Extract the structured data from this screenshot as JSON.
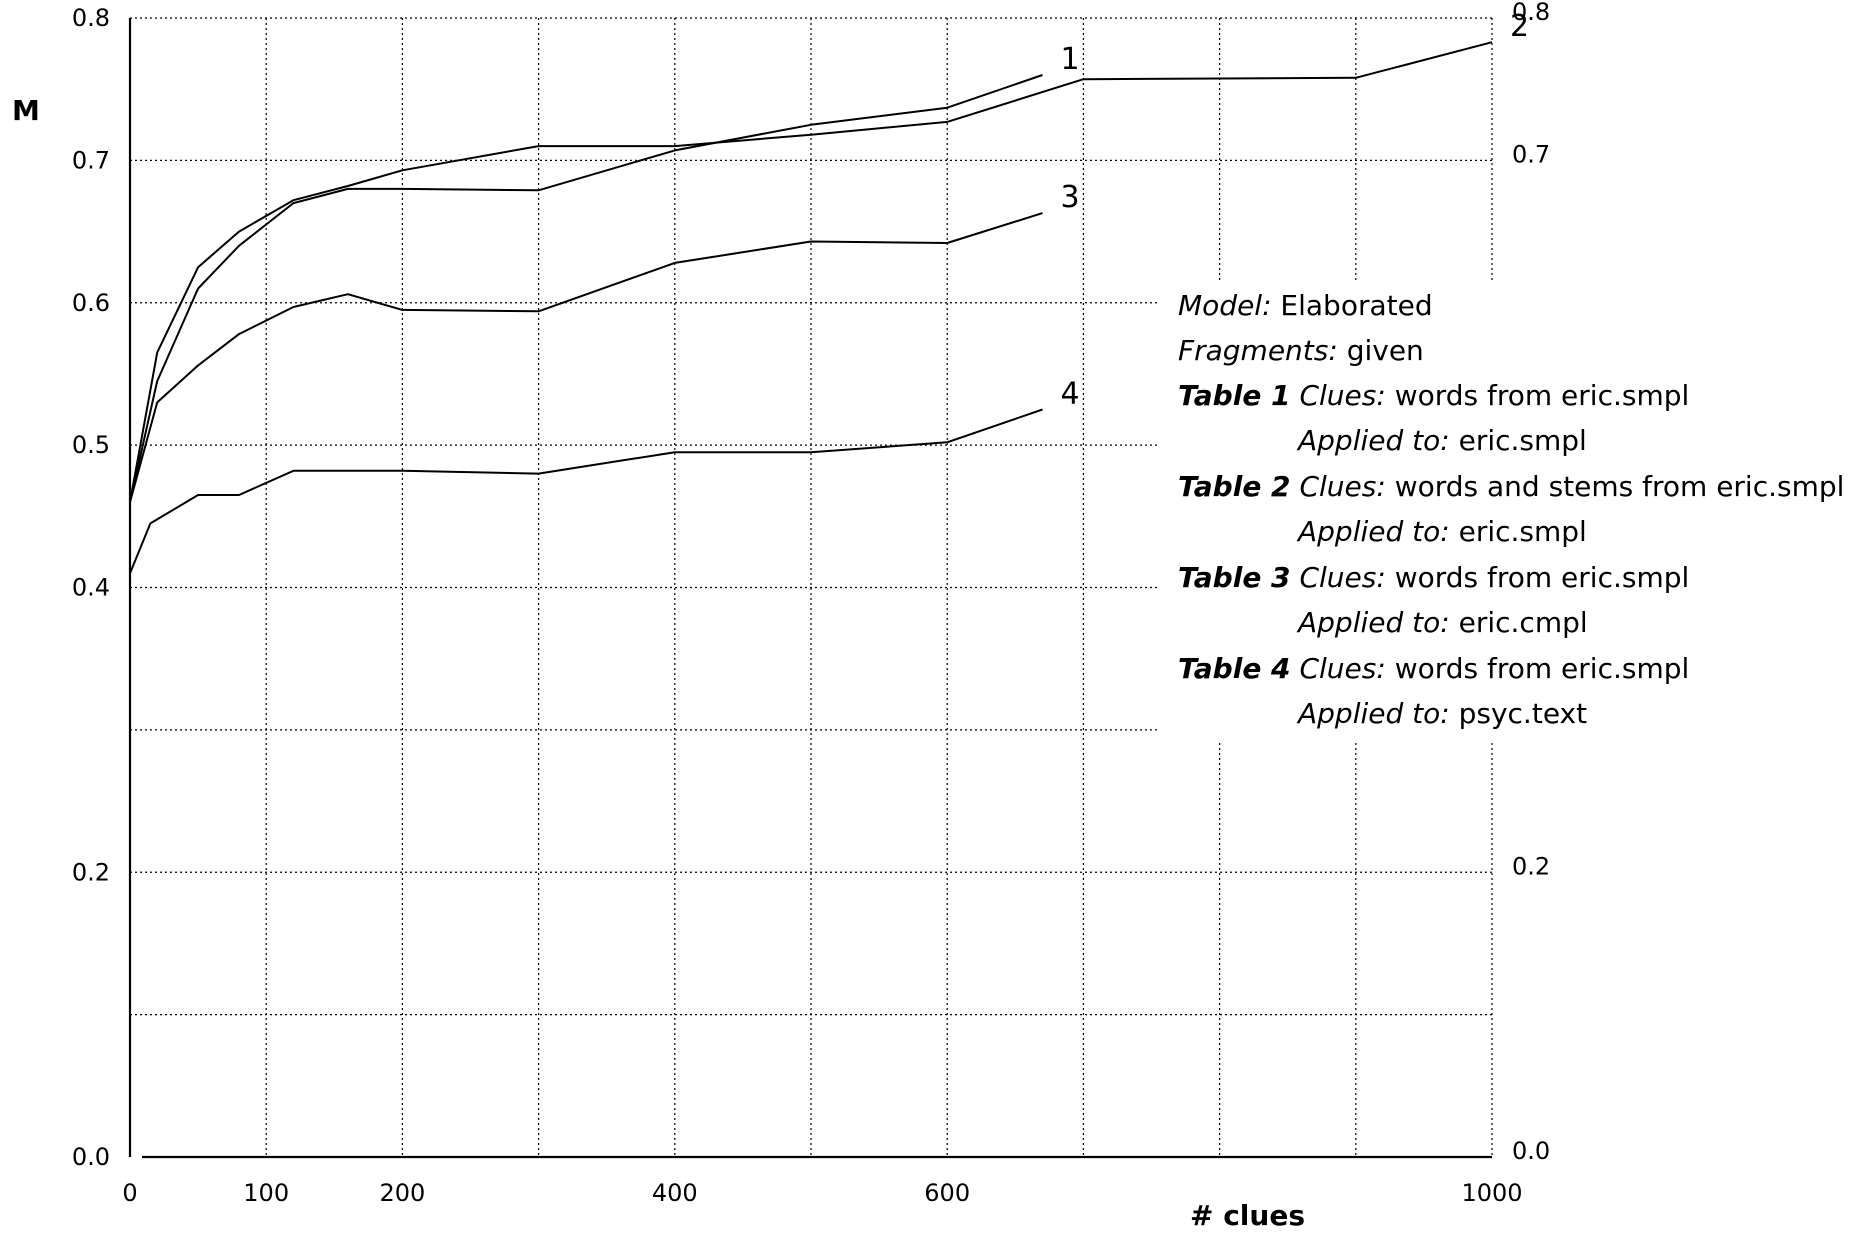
{
  "chart_data": {
    "type": "line",
    "xlabel": "# clues",
    "ylabel": "M",
    "xlim": [
      0,
      1000
    ],
    "ylim": [
      0.0,
      0.8
    ],
    "grid": true,
    "x_ticks": [
      {
        "value": 0,
        "label": "0"
      },
      {
        "value": 100,
        "label": "100"
      },
      {
        "value": 200,
        "label": "200"
      },
      {
        "value": 400,
        "label": "400"
      },
      {
        "value": 600,
        "label": "600"
      },
      {
        "value": 1000,
        "label": "1000"
      }
    ],
    "x_grid": [
      100,
      200,
      300,
      400,
      500,
      600,
      700,
      800,
      900,
      1000
    ],
    "y_ticks_left": [
      {
        "value": 0.8,
        "label": "0.8"
      },
      {
        "value": 0.7,
        "label": "0.7"
      },
      {
        "value": 0.6,
        "label": "0.6"
      },
      {
        "value": 0.5,
        "label": "0.5"
      },
      {
        "value": 0.4,
        "label": "0.4"
      },
      {
        "value": 0.2,
        "label": "0.2"
      },
      {
        "value": 0.0,
        "label": "0.0"
      }
    ],
    "y_ticks_right": [
      {
        "value": 0.8,
        "label": "0.8"
      },
      {
        "value": 0.7,
        "label": "0.7"
      },
      {
        "value": 0.2,
        "label": "0.2"
      },
      {
        "value": 0.0,
        "label": "0.0"
      }
    ],
    "y_grid": [
      0.1,
      0.2,
      0.3,
      0.4,
      0.5,
      0.6,
      0.7,
      0.8
    ],
    "series": [
      {
        "name": "1",
        "points": [
          [
            0,
            0.46
          ],
          [
            20,
            0.545
          ],
          [
            50,
            0.61
          ],
          [
            80,
            0.64
          ],
          [
            120,
            0.67
          ],
          [
            160,
            0.68
          ],
          [
            200,
            0.68
          ],
          [
            300,
            0.679
          ],
          [
            400,
            0.707
          ],
          [
            500,
            0.725
          ],
          [
            600,
            0.737
          ],
          [
            670,
            0.76
          ]
        ]
      },
      {
        "name": "2",
        "points": [
          [
            0,
            0.46
          ],
          [
            20,
            0.565
          ],
          [
            50,
            0.625
          ],
          [
            80,
            0.65
          ],
          [
            120,
            0.672
          ],
          [
            160,
            0.682
          ],
          [
            200,
            0.693
          ],
          [
            300,
            0.71
          ],
          [
            400,
            0.71
          ],
          [
            500,
            0.718
          ],
          [
            600,
            0.727
          ],
          [
            700,
            0.757
          ],
          [
            900,
            0.758
          ],
          [
            1000,
            0.783
          ]
        ]
      },
      {
        "name": "3",
        "points": [
          [
            0,
            0.46
          ],
          [
            20,
            0.53
          ],
          [
            50,
            0.556
          ],
          [
            80,
            0.578
          ],
          [
            120,
            0.597
          ],
          [
            160,
            0.606
          ],
          [
            200,
            0.595
          ],
          [
            300,
            0.594
          ],
          [
            400,
            0.628
          ],
          [
            500,
            0.643
          ],
          [
            600,
            0.642
          ],
          [
            670,
            0.663
          ]
        ]
      },
      {
        "name": "4",
        "points": [
          [
            0,
            0.41
          ],
          [
            15,
            0.445
          ],
          [
            50,
            0.465
          ],
          [
            80,
            0.465
          ],
          [
            120,
            0.482
          ],
          [
            200,
            0.482
          ],
          [
            300,
            0.48
          ],
          [
            400,
            0.495
          ],
          [
            500,
            0.495
          ],
          [
            600,
            0.502
          ],
          [
            670,
            0.525
          ]
        ]
      }
    ]
  },
  "legend": {
    "model_label": "Model:",
    "model_value": "Elaborated",
    "fragments_label": "Fragments:",
    "fragments_value": "given",
    "tables": [
      {
        "table": "Table 1",
        "clues_label": "Clues:",
        "clues": "words from eric.smpl",
        "applied_label": "Applied to:",
        "applied": "eric.smpl"
      },
      {
        "table": "Table 2",
        "clues_label": "Clues:",
        "clues": "words and stems from eric.smpl",
        "applied_label": "Applied to:",
        "applied": "eric.smpl"
      },
      {
        "table": "Table 3",
        "clues_label": "Clues:",
        "clues": "words from eric.smpl",
        "applied_label": "Applied to:",
        "applied": "eric.cmpl"
      },
      {
        "table": "Table 4",
        "clues_label": "Clues:",
        "clues": "words from eric.smpl",
        "applied_label": "Applied to:",
        "applied": "psyc.text"
      }
    ]
  }
}
